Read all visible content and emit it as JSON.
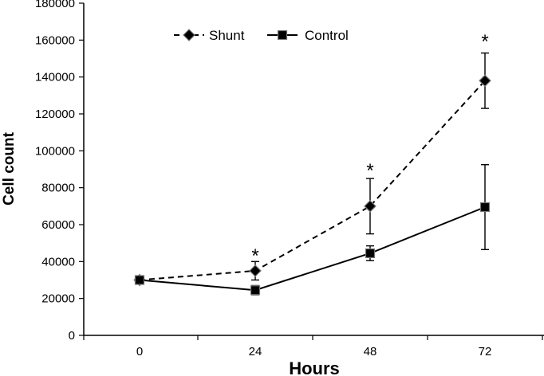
{
  "chart_data": {
    "type": "line",
    "xlabel": "Hours",
    "ylabel": "Cell count",
    "ylim": [
      0,
      180000
    ],
    "y_ticks": [
      "0",
      "20000",
      "40000",
      "60000",
      "80000",
      "100000",
      "120000",
      "140000",
      "160000",
      "180000"
    ],
    "categories": [
      "0",
      "24",
      "48",
      "72"
    ],
    "grid": false,
    "legend_position": "top-left",
    "series": [
      {
        "name": "Shunt",
        "line_style": "dashed",
        "marker": "diamond",
        "color": "#000000",
        "values": [
          30000,
          35000,
          70000,
          138000
        ],
        "errors": [
          0,
          5000,
          15000,
          15000
        ]
      },
      {
        "name": "Control",
        "line_style": "solid",
        "marker": "square",
        "color": "#000000",
        "values": [
          30000,
          24500,
          44500,
          69500
        ],
        "errors": [
          0,
          2500,
          4000,
          23000
        ]
      }
    ],
    "annotations": [
      {
        "text": "*",
        "x": "24",
        "y": 45000
      },
      {
        "text": "*",
        "x": "48",
        "y": 91000
      },
      {
        "text": "*",
        "x": "72",
        "y": 161000
      }
    ]
  }
}
